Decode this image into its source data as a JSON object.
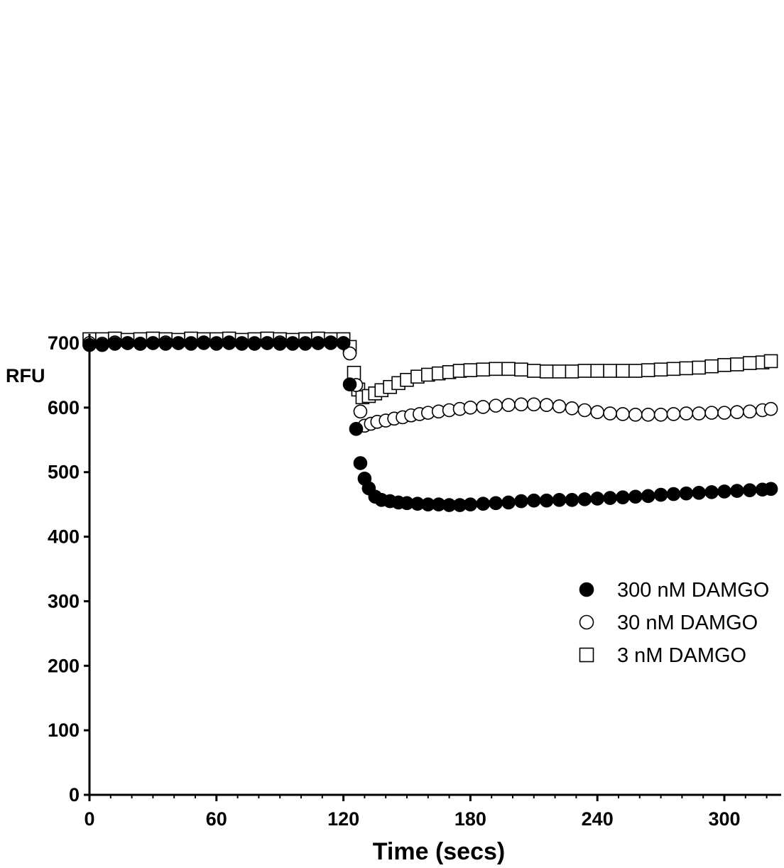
{
  "chart_data": {
    "type": "scatter",
    "title": "",
    "xlabel": "Time (secs)",
    "ylabel": "RFU",
    "xlim": [
      0,
      324
    ],
    "ylim": [
      0,
      700
    ],
    "xticks": [
      0,
      60,
      120,
      180,
      240,
      300
    ],
    "yticks": [
      0,
      100,
      200,
      300,
      400,
      500,
      600,
      700
    ],
    "grid": false,
    "legend_position": "right",
    "series": [
      {
        "name": "300 nM DAMGO",
        "marker": "filled-circle",
        "color": "#000000",
        "x": [
          0,
          6,
          12,
          18,
          24,
          30,
          36,
          42,
          48,
          54,
          60,
          66,
          72,
          78,
          84,
          90,
          96,
          102,
          108,
          114,
          120,
          123,
          126,
          128,
          130,
          132,
          135,
          138,
          142,
          146,
          150,
          155,
          160,
          165,
          170,
          175,
          180,
          186,
          192,
          198,
          204,
          210,
          216,
          222,
          228,
          234,
          240,
          246,
          252,
          258,
          264,
          270,
          276,
          282,
          288,
          294,
          300,
          306,
          312,
          318,
          322
        ],
        "y": [
          697,
          697,
          699,
          700,
          699,
          700,
          699,
          700,
          700,
          701,
          699,
          700,
          699,
          700,
          700,
          699,
          700,
          699,
          700,
          700,
          700,
          636,
          567,
          514,
          490,
          475,
          462,
          457,
          455,
          453,
          452,
          451,
          450,
          450,
          449,
          449,
          450,
          451,
          452,
          453,
          455,
          456,
          456,
          457,
          457,
          458,
          459,
          460,
          461,
          462,
          463,
          465,
          466,
          467,
          468,
          469,
          470,
          471,
          472,
          473,
          474
        ]
      },
      {
        "name": "30 nM DAMGO",
        "marker": "open-circle",
        "color": "#000000",
        "x": [
          0,
          6,
          12,
          18,
          24,
          30,
          36,
          42,
          48,
          54,
          60,
          66,
          72,
          78,
          84,
          90,
          96,
          102,
          108,
          114,
          120,
          123,
          126,
          128,
          130,
          133,
          136,
          140,
          144,
          148,
          152,
          156,
          160,
          165,
          170,
          175,
          180,
          186,
          192,
          198,
          204,
          210,
          216,
          222,
          228,
          234,
          240,
          246,
          252,
          258,
          264,
          270,
          276,
          282,
          288,
          294,
          300,
          306,
          312,
          318,
          322
        ],
        "y": [
          700,
          699,
          701,
          700,
          699,
          700,
          701,
          700,
          699,
          700,
          700,
          701,
          700,
          699,
          700,
          701,
          699,
          700,
          700,
          701,
          700,
          684,
          635,
          594,
          572,
          575,
          578,
          580,
          583,
          585,
          588,
          590,
          592,
          594,
          596,
          598,
          600,
          601,
          603,
          604,
          605,
          605,
          604,
          602,
          599,
          596,
          593,
          591,
          590,
          589,
          589,
          589,
          590,
          591,
          591,
          592,
          592,
          593,
          594,
          596,
          598
        ]
      },
      {
        "name": "3 nM DAMGO",
        "marker": "open-square",
        "color": "#000000",
        "x": [
          0,
          6,
          12,
          18,
          24,
          30,
          36,
          42,
          48,
          54,
          60,
          66,
          72,
          78,
          84,
          90,
          96,
          102,
          108,
          114,
          120,
          123,
          125,
          127,
          129,
          132,
          135,
          138,
          142,
          146,
          150,
          155,
          160,
          165,
          170,
          175,
          180,
          186,
          192,
          198,
          204,
          210,
          216,
          222,
          228,
          234,
          240,
          246,
          252,
          258,
          264,
          270,
          276,
          282,
          288,
          294,
          300,
          306,
          312,
          318,
          322
        ],
        "y": [
          706,
          706,
          707,
          705,
          706,
          707,
          706,
          705,
          707,
          706,
          706,
          707,
          705,
          706,
          707,
          706,
          705,
          706,
          707,
          706,
          706,
          694,
          654,
          628,
          616,
          618,
          622,
          627,
          632,
          638,
          643,
          648,
          651,
          653,
          655,
          657,
          658,
          659,
          660,
          660,
          659,
          657,
          656,
          656,
          656,
          657,
          657,
          657,
          657,
          657,
          658,
          659,
          660,
          661,
          662,
          664,
          666,
          667,
          669,
          670,
          672
        ]
      }
    ]
  }
}
